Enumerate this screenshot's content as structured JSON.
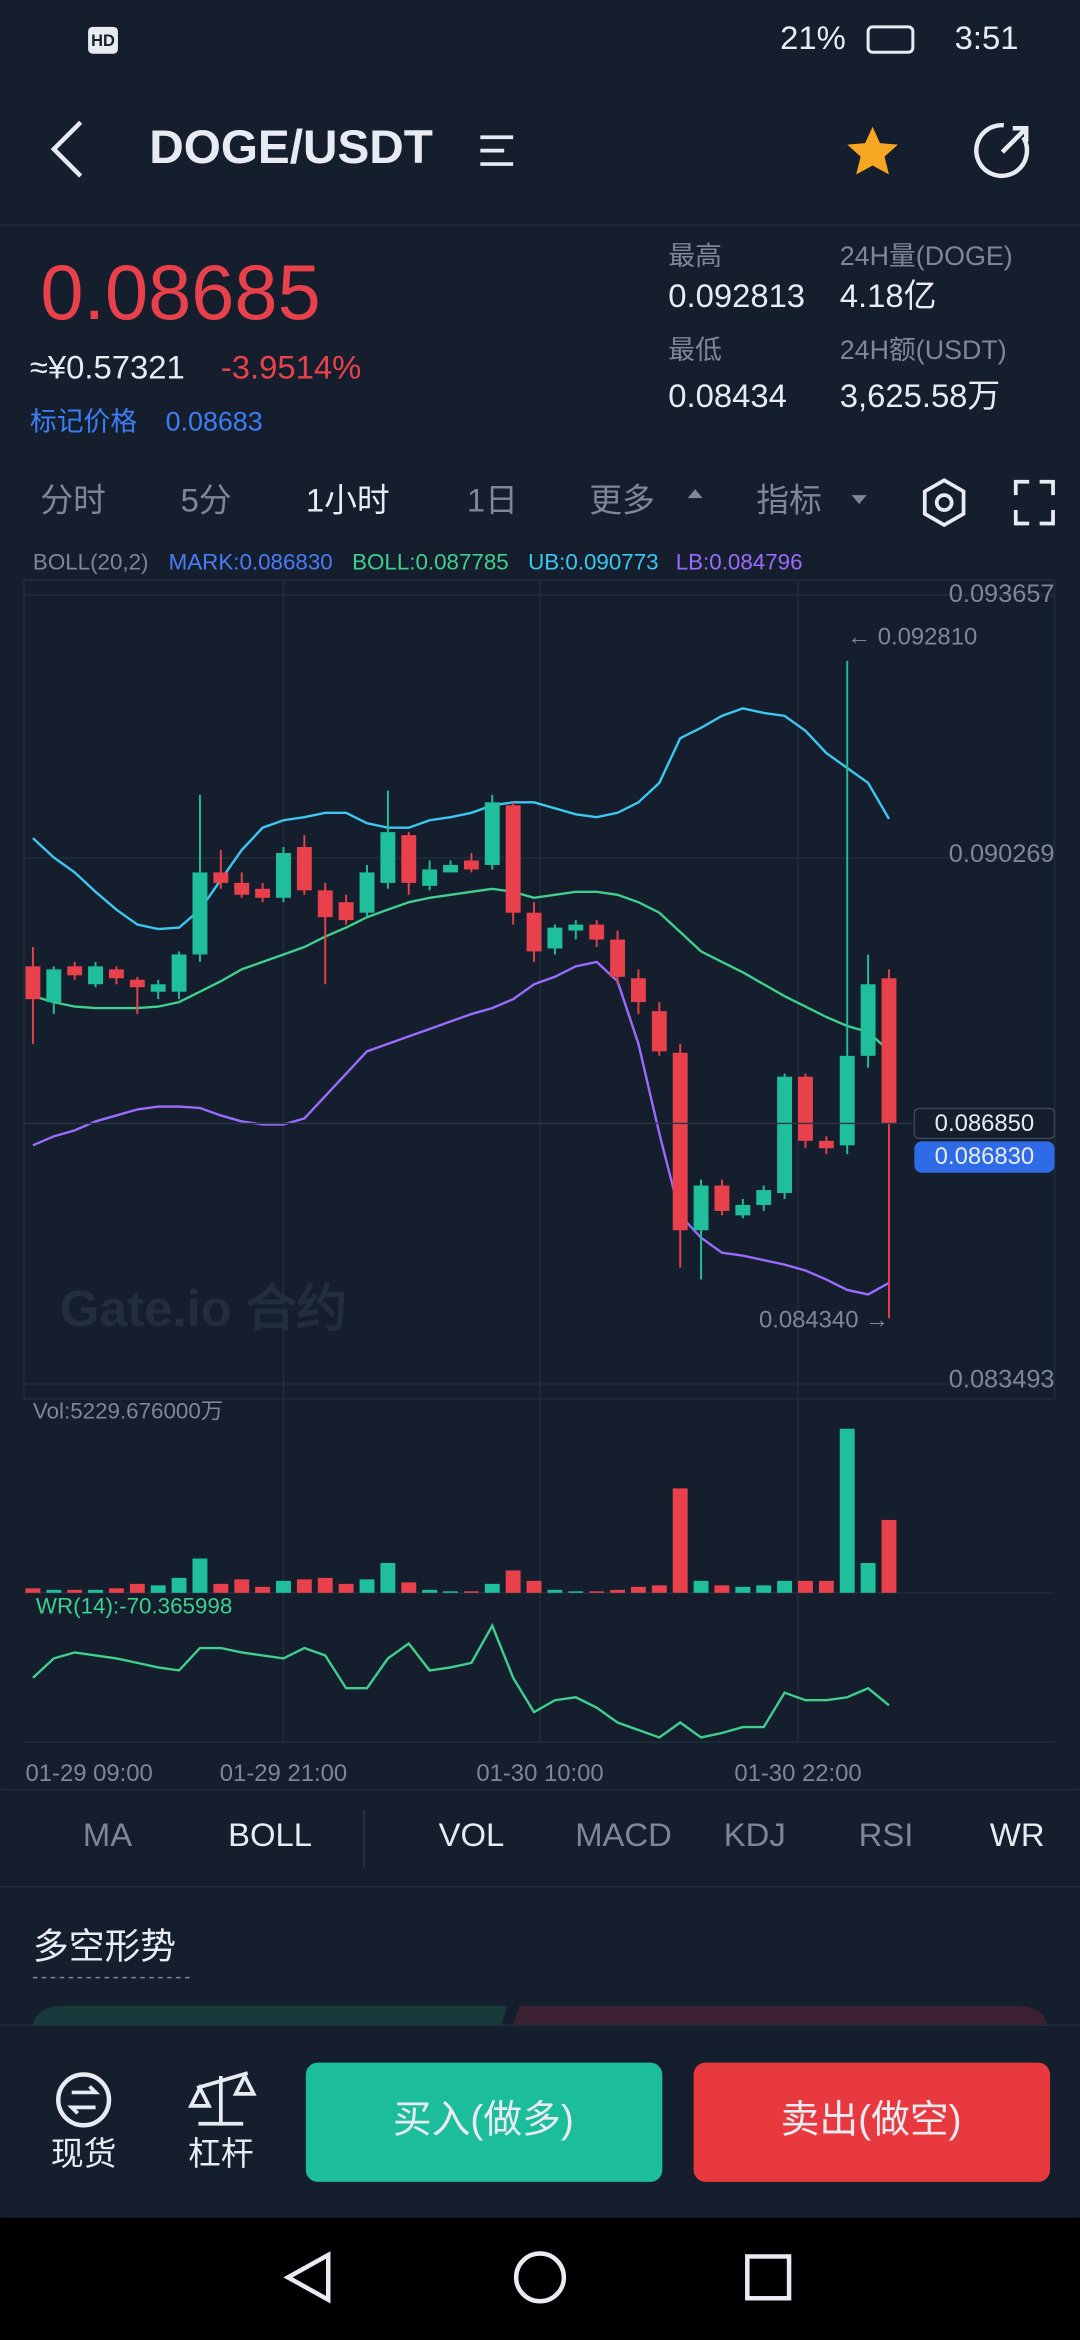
{
  "status": {
    "badge": "HD",
    "battery": "21%",
    "time": "3:51"
  },
  "header": {
    "pair": "DOGE/USDT"
  },
  "ticker": {
    "last": "0.08685",
    "cny": "≈¥0.57321",
    "change": "-3.9514%",
    "mark_label": "标记价格",
    "mark": "0.08683",
    "high_label": "最高",
    "high": "0.092813",
    "vol_label": "24H量(DOGE)",
    "vol": "4.18亿",
    "low_label": "最低",
    "low": "0.08434",
    "amount_label": "24H额(USDT)",
    "amount": "3,625.58万"
  },
  "intervals": [
    "分时",
    "5分",
    "1小时",
    "1日",
    "更多",
    "指标"
  ],
  "chart": {
    "type": "candlestick",
    "legend": [
      "BOLL(20,2)",
      "MARK:0.086830",
      "BOLL:0.087785",
      "UB:0.090773",
      "LB:0.084796"
    ],
    "ylim": [
      0.083493,
      0.093657
    ],
    "yticks": [
      0.093657,
      0.090269,
      0.083493
    ],
    "price_tags": [
      {
        "value": 0.08685,
        "label": "0.086850"
      },
      {
        "value": 0.08683,
        "label": "0.086830"
      }
    ],
    "high_note": "← 0.092810",
    "low_note": "0.084340 →",
    "watermark": "Gate.io 合约",
    "candles": [
      [
        0.088874,
        0.088451,
        0.089123,
        0.087875
      ],
      [
        0.088413,
        0.088835,
        0.088874,
        0.088259
      ],
      [
        0.088874,
        0.088758,
        0.088931,
        0.088701
      ],
      [
        0.088643,
        0.088874,
        0.088931,
        0.088605
      ],
      [
        0.088835,
        0.08872,
        0.088874,
        0.088643
      ],
      [
        0.088701,
        0.088605,
        0.088739,
        0.088259
      ],
      [
        0.088547,
        0.088643,
        0.088701,
        0.088451
      ],
      [
        0.088547,
        0.089027,
        0.089066,
        0.088451
      ],
      [
        0.089027,
        0.090084,
        0.091083,
        0.088931
      ],
      [
        0.090084,
        0.089949,
        0.090372,
        0.089873
      ],
      [
        0.089949,
        0.089796,
        0.090084,
        0.089757
      ],
      [
        0.089873,
        0.089757,
        0.089949,
        0.0897
      ],
      [
        0.089757,
        0.090334,
        0.090411,
        0.0897
      ],
      [
        0.090411,
        0.089853,
        0.090564,
        0.089796
      ],
      [
        0.089853,
        0.089507,
        0.089949,
        0.088643
      ],
      [
        0.0897,
        0.089469,
        0.089796,
        0.089412
      ],
      [
        0.089565,
        0.090084,
        0.09018,
        0.089507
      ],
      [
        0.089949,
        0.090603,
        0.09114,
        0.089873
      ],
      [
        0.090564,
        0.089949,
        0.090603,
        0.089796
      ],
      [
        0.089911,
        0.090122,
        0.090238,
        0.089853
      ],
      [
        0.090084,
        0.09018,
        0.090238,
        0.090084
      ],
      [
        0.090238,
        0.090122,
        0.090334,
        0.090084
      ],
      [
        0.09018,
        0.090987,
        0.091083,
        0.090122
      ],
      [
        0.090948,
        0.089565,
        0.090987,
        0.089412
      ],
      [
        0.089565,
        0.089066,
        0.0897,
        0.088931
      ],
      [
        0.089104,
        0.089373,
        0.089412,
        0.089027
      ],
      [
        0.089335,
        0.089412,
        0.089469,
        0.089219
      ],
      [
        0.089412,
        0.089219,
        0.089469,
        0.089123
      ],
      [
        0.089219,
        0.088739,
        0.089335,
        0.088643
      ],
      [
        0.08872,
        0.088413,
        0.088835,
        0.088259
      ],
      [
        0.088297,
        0.087779,
        0.088413,
        0.087721
      ],
      [
        0.08776,
        0.085474,
        0.087875,
        0.084993
      ],
      [
        0.085474,
        0.08605,
        0.086126,
        0.084839
      ],
      [
        0.08605,
        0.085723,
        0.086126,
        0.085666
      ],
      [
        0.085666,
        0.0858,
        0.085877,
        0.085628
      ],
      [
        0.0858,
        0.085992,
        0.08605,
        0.085723
      ],
      [
        0.085954,
        0.087452,
        0.087491,
        0.085877
      ],
      [
        0.087452,
        0.086626,
        0.087491,
        0.08653
      ],
      [
        0.086626,
        0.08653,
        0.086684,
        0.086453
      ],
      [
        0.086568,
        0.087721,
        0.09281,
        0.086453
      ],
      [
        0.087721,
        0.088643,
        0.089027,
        0.087567
      ],
      [
        0.08872,
        0.08685,
        0.088835,
        0.08434
      ]
    ],
    "boll": {
      "upper": [
        0.090526,
        0.090276,
        0.090084,
        0.089834,
        0.089604,
        0.089412,
        0.089354,
        0.089373,
        0.089604,
        0.089988,
        0.090372,
        0.09066,
        0.090756,
        0.090795,
        0.090852,
        0.090852,
        0.090718,
        0.09066,
        0.09066,
        0.090756,
        0.090795,
        0.090852,
        0.090948,
        0.090987,
        0.090987,
        0.09091,
        0.090833,
        0.090795,
        0.090852,
        0.090987,
        0.091237,
        0.091813,
        0.091947,
        0.092101,
        0.092197,
        0.092139,
        0.092101,
        0.091909,
        0.091621,
        0.091429,
        0.091237,
        0.090773
      ],
      "mid": [
        0.08849,
        0.088413,
        0.088355,
        0.088336,
        0.088336,
        0.088336,
        0.088355,
        0.088413,
        0.088547,
        0.088682,
        0.088835,
        0.088931,
        0.089027,
        0.089123,
        0.089258,
        0.089373,
        0.089507,
        0.089604,
        0.0897,
        0.089757,
        0.089796,
        0.089834,
        0.089873,
        0.089834,
        0.089757,
        0.089796,
        0.089834,
        0.089834,
        0.089796,
        0.0897,
        0.089565,
        0.089316,
        0.089066,
        0.088931,
        0.088797,
        0.088643,
        0.08849,
        0.088355,
        0.088221,
        0.088105,
        0.088028,
        0.087785
      ],
      "lower": [
        0.086568,
        0.086684,
        0.086761,
        0.086876,
        0.086953,
        0.08703,
        0.087068,
        0.087068,
        0.087049,
        0.086953,
        0.086876,
        0.086837,
        0.086837,
        0.086914,
        0.087202,
        0.087491,
        0.087779,
        0.087875,
        0.087971,
        0.088067,
        0.088163,
        0.088259,
        0.088336,
        0.088451,
        0.088643,
        0.088739,
        0.088874,
        0.088931,
        0.088682,
        0.087875,
        0.086722,
        0.085666,
        0.085377,
        0.085185,
        0.085147,
        0.085089,
        0.085031,
        0.084955,
        0.084839,
        0.084705,
        0.084647,
        0.084796
      ]
    },
    "volume_label": "Vol:5229.676000万",
    "volume": [
      321,
      214,
      214,
      214,
      321,
      642,
      535,
      1070,
      2461,
      642,
      963,
      428,
      856,
      963,
      1070,
      642,
      963,
      2140,
      749,
      214,
      107,
      107,
      642,
      1605,
      856,
      214,
      107,
      107,
      214,
      428,
      535,
      7490,
      856,
      535,
      428,
      535,
      856,
      856,
      856,
      11770,
      2140,
      5229.676
    ],
    "wr_label": "WR(14):-70.365998",
    "wr": [
      -48.2,
      -32.5,
      -27.7,
      -30.1,
      -32.5,
      -36.1,
      -39.8,
      -42.2,
      -24.1,
      -24.1,
      -27.7,
      -30.1,
      -32.5,
      -24.1,
      -30.1,
      -56.6,
      -56.6,
      -32.5,
      -20.5,
      -42.2,
      -39.8,
      -36.1,
      -6.0,
      -48.2,
      -75.9,
      -66.3,
      -63.9,
      -72.3,
      -84.3,
      -90.4,
      -96.4,
      -84.3,
      -96.4,
      -92.8,
      -88.0,
      -88.0,
      -60.2,
      -66.3,
      -66.3,
      -63.9,
      -56.6,
      -70.365998
    ],
    "x_labels": [
      "01-29 09:00",
      "01-29 21:00",
      "01-30 10:00",
      "01-30 22:00"
    ]
  },
  "indicators": [
    "MA",
    "BOLL",
    "VOL",
    "MACD",
    "KDJ",
    "RSI",
    "WR"
  ],
  "section": {
    "title": "多空形势"
  },
  "bottom": {
    "spot": "现货",
    "margin": "杠杆",
    "buy": "买入(做多)",
    "sell": "卖出(做空)"
  }
}
